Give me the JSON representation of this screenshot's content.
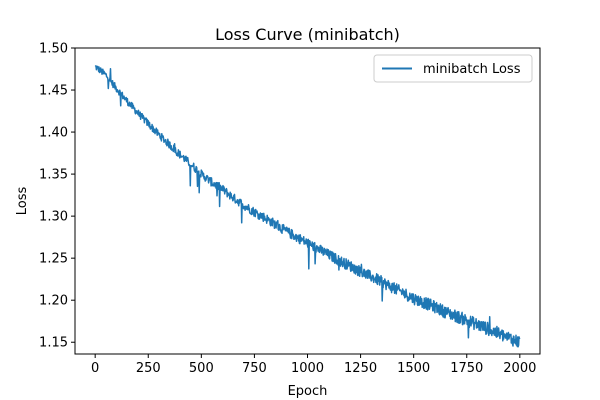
{
  "chart_data": {
    "type": "line",
    "title": "Loss Curve (minibatch)",
    "xlabel": "Epoch",
    "ylabel": "Loss",
    "xlim": [
      -95,
      2095
    ],
    "ylim": [
      1.136,
      1.5
    ],
    "xticks": [
      0,
      250,
      500,
      750,
      1000,
      1250,
      1500,
      1750,
      2000
    ],
    "yticks": [
      1.15,
      1.2,
      1.25,
      1.3,
      1.35,
      1.4,
      1.45,
      1.5
    ],
    "xtick_labels": [
      "0",
      "250",
      "500",
      "750",
      "1000",
      "1250",
      "1500",
      "1750",
      "2000"
    ],
    "ytick_labels": [
      "1.15",
      "1.20",
      "1.25",
      "1.30",
      "1.35",
      "1.40",
      "1.45",
      "1.50"
    ],
    "grid": false,
    "legend_position": "top-right",
    "series": [
      {
        "name": "minibatch Loss",
        "color": "#1f77b4",
        "x": [
          0,
          50,
          100,
          150,
          200,
          250,
          300,
          350,
          400,
          450,
          500,
          550,
          600,
          650,
          700,
          750,
          800,
          850,
          900,
          950,
          1000,
          1050,
          1100,
          1150,
          1200,
          1250,
          1300,
          1350,
          1400,
          1450,
          1500,
          1550,
          1600,
          1650,
          1700,
          1750,
          1800,
          1850,
          1900,
          1950,
          2000
        ],
        "y": [
          1.478,
          1.468,
          1.452,
          1.437,
          1.423,
          1.41,
          1.397,
          1.385,
          1.373,
          1.362,
          1.35,
          1.34,
          1.332,
          1.322,
          1.313,
          1.305,
          1.298,
          1.29,
          1.282,
          1.275,
          1.268,
          1.261,
          1.254,
          1.247,
          1.241,
          1.234,
          1.228,
          1.222,
          1.215,
          1.209,
          1.202,
          1.197,
          1.192,
          1.186,
          1.181,
          1.176,
          1.171,
          1.166,
          1.16,
          1.155,
          1.15
        ]
      }
    ]
  }
}
